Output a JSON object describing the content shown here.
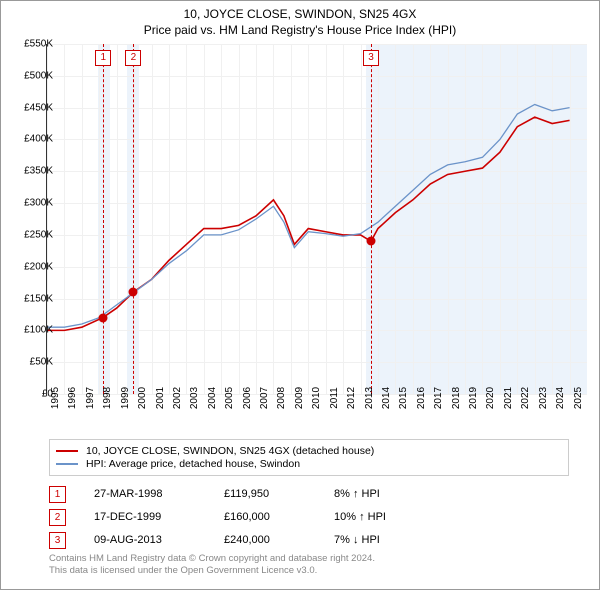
{
  "title_line1": "10, JOYCE CLOSE, SWINDON, SN25 4GX",
  "title_line2": "Price paid vs. HM Land Registry's House Price Index (HPI)",
  "chart": {
    "type": "line",
    "xlim": [
      1995,
      2026
    ],
    "ylim": [
      0,
      550000
    ],
    "ytick_step": 50000,
    "yticks": [
      "£0",
      "£50K",
      "£100K",
      "£150K",
      "£200K",
      "£250K",
      "£300K",
      "£350K",
      "£400K",
      "£450K",
      "£500K",
      "£550K"
    ],
    "xticks": [
      "1995",
      "1996",
      "1997",
      "1998",
      "1999",
      "2000",
      "2001",
      "2002",
      "2003",
      "2004",
      "2005",
      "2006",
      "2007",
      "2008",
      "2009",
      "2010",
      "2011",
      "2012",
      "2013",
      "2014",
      "2015",
      "2016",
      "2017",
      "2018",
      "2019",
      "2020",
      "2021",
      "2022",
      "2023",
      "2024",
      "2025"
    ],
    "background_color": "#ffffff",
    "grid_color": "#f0f0f0",
    "band_color": "#eaf2fb",
    "series": [
      {
        "name": "property",
        "label": "10, JOYCE CLOSE, SWINDON, SN25 4GX (detached house)",
        "color": "#cc0000",
        "width": 1.6,
        "points": [
          [
            1995.0,
            100000
          ],
          [
            1996.0,
            100000
          ],
          [
            1997.0,
            105000
          ],
          [
            1998.2,
            119950
          ],
          [
            1999.0,
            135000
          ],
          [
            1999.96,
            160000
          ],
          [
            2001.0,
            180000
          ],
          [
            2002.0,
            210000
          ],
          [
            2003.0,
            235000
          ],
          [
            2004.0,
            260000
          ],
          [
            2005.0,
            260000
          ],
          [
            2006.0,
            265000
          ],
          [
            2007.0,
            280000
          ],
          [
            2008.0,
            305000
          ],
          [
            2008.6,
            280000
          ],
          [
            2009.2,
            235000
          ],
          [
            2010.0,
            260000
          ],
          [
            2011.0,
            255000
          ],
          [
            2012.0,
            250000
          ],
          [
            2013.0,
            250000
          ],
          [
            2013.6,
            240000
          ],
          [
            2014.0,
            260000
          ],
          [
            2015.0,
            285000
          ],
          [
            2016.0,
            305000
          ],
          [
            2017.0,
            330000
          ],
          [
            2018.0,
            345000
          ],
          [
            2019.0,
            350000
          ],
          [
            2020.0,
            355000
          ],
          [
            2021.0,
            380000
          ],
          [
            2022.0,
            420000
          ],
          [
            2023.0,
            435000
          ],
          [
            2024.0,
            425000
          ],
          [
            2025.0,
            430000
          ]
        ]
      },
      {
        "name": "hpi",
        "label": "HPI: Average price, detached house, Swindon",
        "color": "#6b93c9",
        "width": 1.3,
        "points": [
          [
            1995.0,
            105000
          ],
          [
            1996.0,
            105000
          ],
          [
            1997.0,
            110000
          ],
          [
            1998.0,
            120000
          ],
          [
            1999.0,
            140000
          ],
          [
            2000.0,
            160000
          ],
          [
            2001.0,
            180000
          ],
          [
            2002.0,
            205000
          ],
          [
            2003.0,
            225000
          ],
          [
            2004.0,
            250000
          ],
          [
            2005.0,
            250000
          ],
          [
            2006.0,
            258000
          ],
          [
            2007.0,
            275000
          ],
          [
            2008.0,
            295000
          ],
          [
            2008.6,
            270000
          ],
          [
            2009.2,
            230000
          ],
          [
            2010.0,
            255000
          ],
          [
            2011.0,
            252000
          ],
          [
            2012.0,
            248000
          ],
          [
            2013.0,
            252000
          ],
          [
            2014.0,
            270000
          ],
          [
            2015.0,
            295000
          ],
          [
            2016.0,
            320000
          ],
          [
            2017.0,
            345000
          ],
          [
            2018.0,
            360000
          ],
          [
            2019.0,
            365000
          ],
          [
            2020.0,
            372000
          ],
          [
            2021.0,
            400000
          ],
          [
            2022.0,
            440000
          ],
          [
            2023.0,
            455000
          ],
          [
            2024.0,
            445000
          ],
          [
            2025.0,
            450000
          ]
        ]
      }
    ],
    "sales": [
      {
        "n": "1",
        "x": 1998.23,
        "price": 119950,
        "band": [
          1997.9,
          1998.6
        ]
      },
      {
        "n": "2",
        "x": 1999.96,
        "price": 160000,
        "band": [
          1999.6,
          2000.3
        ]
      },
      {
        "n": "3",
        "x": 2013.6,
        "price": 240000,
        "band": [
          2013.3,
          2026.0
        ]
      }
    ]
  },
  "legend": {
    "series1_label": "10, JOYCE CLOSE, SWINDON, SN25 4GX (detached house)",
    "series1_color": "#cc0000",
    "series2_label": "HPI: Average price, detached house, Swindon",
    "series2_color": "#6b93c9"
  },
  "sales_table": [
    {
      "n": "1",
      "date": "27-MAR-1998",
      "price": "£119,950",
      "pct": "8% ↑ HPI"
    },
    {
      "n": "2",
      "date": "17-DEC-1999",
      "price": "£160,000",
      "pct": "10% ↑ HPI"
    },
    {
      "n": "3",
      "date": "09-AUG-2013",
      "price": "£240,000",
      "pct": "7% ↓ HPI"
    }
  ],
  "footer_line1": "Contains HM Land Registry data © Crown copyright and database right 2024.",
  "footer_line2": "This data is licensed under the Open Government Licence v3.0."
}
